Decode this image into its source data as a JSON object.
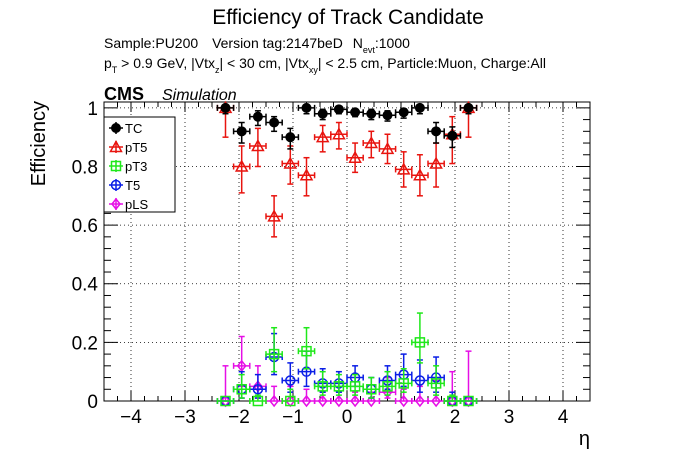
{
  "title": "Efficiency of Track Candidate",
  "subtitle1": {
    "sample": "Sample:PU200",
    "version": "Version tag:2147beD",
    "nevt_main": "N",
    "nevt_sub": "evt",
    "nevt_value": ":1000"
  },
  "subtitle2": {
    "p": "p",
    "p_sub": "T",
    "pt_text": " > 0.9 GeV, |Vtx",
    "z_sub": "z",
    "mid_text": "| < 30 cm, |Vtx",
    "xy_sub": "xy",
    "end_text": "| < 2.5 cm, Particle:Muon, Charge:All"
  },
  "cms_label": "CMS",
  "simulation_label": "Simulation",
  "colors": {
    "TC": "#000000",
    "pT5": "#e8140f",
    "pT3": "#1fe81a",
    "T5": "#0a1ee6",
    "pLS": "#e60fe6"
  },
  "chart_data": {
    "type": "scatter",
    "xlabel": "η",
    "ylabel": "Efficiency",
    "xlim": [
      -4.5,
      4.5
    ],
    "ylim": [
      0,
      1.02
    ],
    "xticks": [
      -4,
      -3,
      -2,
      -1,
      0,
      1,
      2,
      3,
      4
    ],
    "yticks": [
      0,
      0.2,
      0.4,
      0.6,
      0.8,
      1
    ],
    "ytick_labels": [
      "0",
      "0.2",
      "0.4",
      "0.6",
      "0.8",
      "1"
    ],
    "grid": true,
    "legend_position": "top-left",
    "x": [
      -2.25,
      -1.95,
      -1.65,
      -1.35,
      -1.05,
      -0.75,
      -0.45,
      -0.15,
      0.15,
      0.45,
      0.75,
      1.05,
      1.35,
      1.65,
      1.95,
      2.25
    ],
    "xerr": 0.15,
    "series": [
      {
        "name": "TC",
        "marker": "filled-circle",
        "values": [
          1.0,
          0.92,
          0.97,
          0.95,
          0.9,
          1.0,
          0.98,
          0.995,
          0.985,
          0.98,
          0.975,
          0.985,
          1.0,
          0.92,
          0.905,
          1.0
        ],
        "err_low": [
          0.02,
          0.04,
          0.03,
          0.03,
          0.04,
          0.02,
          0.02,
          0.015,
          0.015,
          0.02,
          0.02,
          0.02,
          0.02,
          0.04,
          0.04,
          0.02
        ],
        "err_high": [
          0.0,
          0.03,
          0.02,
          0.02,
          0.03,
          0.0,
          0.015,
          0.005,
          0.01,
          0.015,
          0.015,
          0.012,
          0.0,
          0.03,
          0.03,
          0.0
        ]
      },
      {
        "name": "pT5",
        "marker": "open-triangle",
        "values": [
          1.0,
          0.8,
          0.87,
          0.63,
          0.81,
          0.77,
          0.9,
          0.91,
          0.83,
          0.88,
          0.86,
          0.79,
          0.77,
          0.81,
          0.91,
          1.0
        ],
        "err_low": [
          0.1,
          0.09,
          0.07,
          0.07,
          0.07,
          0.07,
          0.05,
          0.05,
          0.05,
          0.05,
          0.05,
          0.06,
          0.07,
          0.08,
          0.1,
          0.1
        ],
        "err_high": [
          0.0,
          0.07,
          0.06,
          0.07,
          0.06,
          0.06,
          0.04,
          0.04,
          0.05,
          0.04,
          0.05,
          0.06,
          0.07,
          0.07,
          0.06,
          0.0
        ]
      },
      {
        "name": "pT3",
        "marker": "open-square",
        "values": [
          0.0,
          0.04,
          0.0,
          0.16,
          0.0,
          0.17,
          0.05,
          0.05,
          0.05,
          0.04,
          0.05,
          0.06,
          0.2,
          0.06,
          0.0,
          0.0
        ],
        "err_low": [
          0.0,
          0.03,
          0.0,
          0.06,
          0.0,
          0.06,
          0.03,
          0.03,
          0.03,
          0.03,
          0.03,
          0.03,
          0.07,
          0.04,
          0.0,
          0.0
        ],
        "err_high": [
          0.0,
          0.05,
          0.02,
          0.09,
          0.04,
          0.08,
          0.05,
          0.04,
          0.04,
          0.04,
          0.05,
          0.05,
          0.1,
          0.06,
          0.02,
          0.0
        ]
      },
      {
        "name": "T5",
        "marker": "open-circle",
        "values": [
          0.0,
          0.04,
          0.04,
          0.15,
          0.07,
          0.1,
          0.06,
          0.06,
          0.08,
          0.04,
          0.07,
          0.09,
          0.07,
          0.08,
          0.0,
          0.0
        ],
        "err_low": [
          0.0,
          0.03,
          0.03,
          0.06,
          0.04,
          0.05,
          0.03,
          0.03,
          0.03,
          0.03,
          0.03,
          0.04,
          0.04,
          0.05,
          0.0,
          0.0
        ],
        "err_high": [
          0.0,
          0.06,
          0.05,
          0.08,
          0.06,
          0.07,
          0.05,
          0.04,
          0.04,
          0.04,
          0.05,
          0.07,
          0.07,
          0.07,
          0.03,
          0.0
        ]
      },
      {
        "name": "pLS",
        "marker": "open-diamond",
        "values": [
          0.0,
          0.12,
          0.05,
          0.0,
          0.0,
          0.0,
          0.0,
          0.0,
          0.0,
          0.0,
          0.03,
          0.0,
          0.0,
          0.0,
          0.0,
          0.0
        ],
        "err_low": [
          0.0,
          0.07,
          0.04,
          0.0,
          0.0,
          0.0,
          0.0,
          0.0,
          0.0,
          0.0,
          0.02,
          0.0,
          0.0,
          0.0,
          0.0,
          0.0
        ],
        "err_high": [
          0.12,
          0.1,
          0.07,
          0.05,
          0.05,
          0.04,
          0.03,
          0.03,
          0.03,
          0.03,
          0.05,
          0.04,
          0.05,
          0.07,
          0.1,
          0.17
        ]
      }
    ]
  }
}
